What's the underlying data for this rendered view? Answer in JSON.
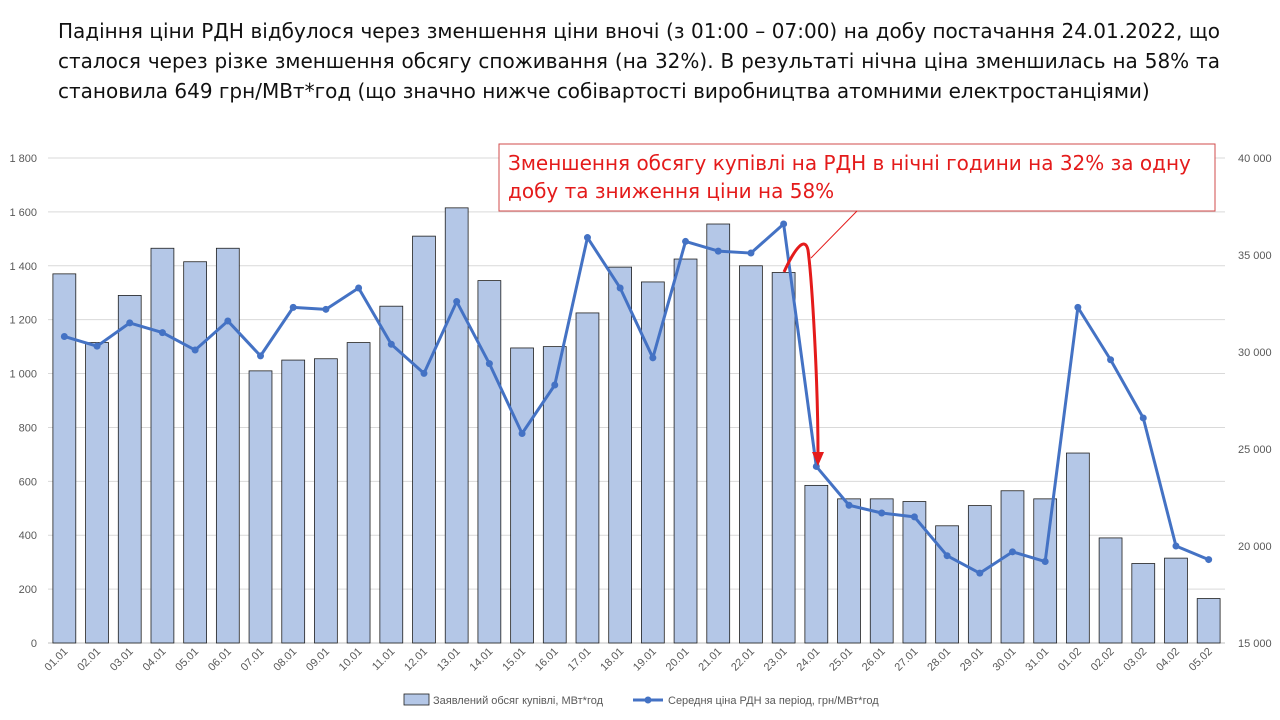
{
  "heading": "Падіння ціни РДН відбулося через зменшення ціни вночі (з 01:00 – 07:00) на добу постачання 24.01.2022, що сталося через різке зменшення обсягу споживання (на 32%). В результаті нічна ціна зменшилась на 58% та становила 649 грн/МВт*год (що значно нижче собівартості виробництва атомними електростанціями)",
  "chart_data": {
    "type": "bar",
    "categories": [
      "01.01",
      "02.01",
      "03.01",
      "04.01",
      "05.01",
      "06.01",
      "07.01",
      "08.01",
      "09.01",
      "10.01",
      "11.01",
      "12.01",
      "13.01",
      "14.01",
      "15.01",
      "16.01",
      "17.01",
      "18.01",
      "19.01",
      "20.01",
      "21.01",
      "22.01",
      "23.01",
      "24.01",
      "25.01",
      "26.01",
      "27.01",
      "28.01",
      "29.01",
      "30.01",
      "31.01",
      "01.02",
      "02.02",
      "03.02",
      "04.02",
      "05.02"
    ],
    "series": [
      {
        "name": "Заявлений обсяг купівлі, МВт*год",
        "type": "bar",
        "axis": "left",
        "color": "#b4c7e7",
        "values": [
          1370,
          1115,
          1290,
          1465,
          1415,
          1465,
          1010,
          1050,
          1055,
          1115,
          1250,
          1510,
          1615,
          1345,
          1095,
          1100,
          1225,
          1395,
          1340,
          1425,
          1555,
          1400,
          1375,
          585,
          535,
          535,
          525,
          435,
          510,
          565,
          535,
          705,
          390,
          295,
          315,
          165
        ]
      },
      {
        "name": "Середня ціна РДН за період, грн/МВт*год",
        "type": "line",
        "axis": "right",
        "color": "#4472c4",
        "values": [
          30800,
          30300,
          31500,
          31000,
          30100,
          31600,
          29800,
          32300,
          32200,
          33300,
          30400,
          28900,
          32600,
          29400,
          25800,
          28300,
          35900,
          33300,
          29700,
          35700,
          35200,
          35100,
          36600,
          24100,
          22100,
          21700,
          21500,
          19500,
          18600,
          19700,
          19200,
          32300,
          29600,
          26600,
          20000,
          19300
        ]
      }
    ],
    "y_left": {
      "min": 0,
      "max": 1800,
      "step": 200,
      "tick_labels": [
        "0",
        "200",
        "400",
        "600",
        "800",
        "1 000",
        "1 200",
        "1 400",
        "1 600",
        "1 800"
      ]
    },
    "y_right": {
      "min": 15000,
      "max": 40000,
      "step": 5000,
      "tick_labels": [
        "15 000",
        "20 000",
        "25 000",
        "30 000",
        "35 000",
        "40 000"
      ]
    },
    "grid": true,
    "legend_position": "bottom",
    "annotation": {
      "lines": [
        "Зменшення обсягу купівлі на РДН в нічні години на 32% за одну",
        "добу та зниження ціни на 58%"
      ],
      "color": "#e41b1b"
    }
  }
}
